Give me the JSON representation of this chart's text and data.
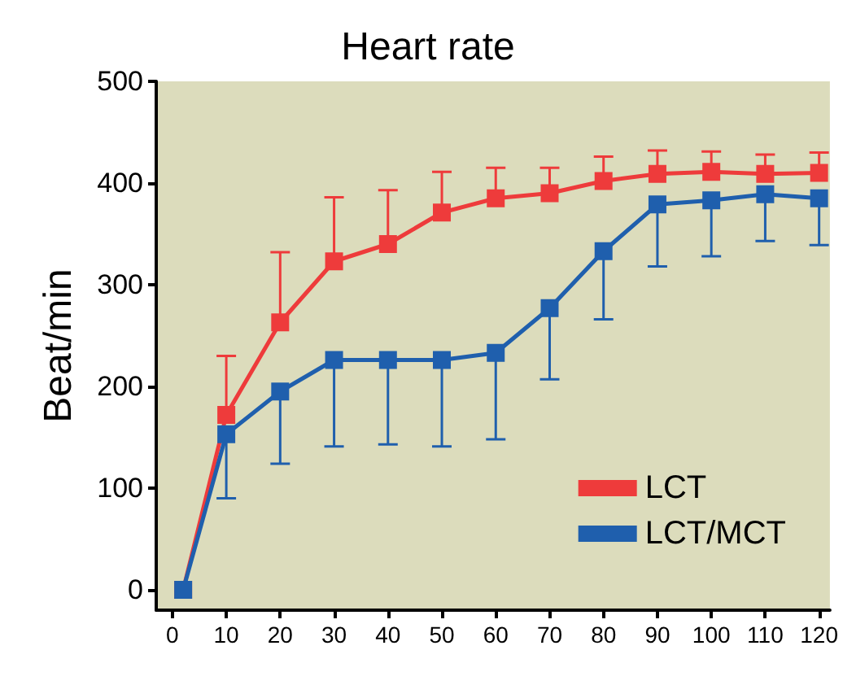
{
  "chart_data": {
    "type": "line",
    "title": "Heart rate",
    "ylabel": "Beat/min",
    "x": [
      2,
      10,
      20,
      30,
      40,
      50,
      60,
      70,
      80,
      90,
      100,
      110,
      120
    ],
    "xlim": [
      -3,
      122
    ],
    "xticks": [
      0,
      10,
      20,
      30,
      40,
      50,
      60,
      70,
      80,
      90,
      100,
      110,
      120
    ],
    "ylim": [
      -20,
      500
    ],
    "yticks": [
      0,
      100,
      200,
      300,
      400,
      500
    ],
    "marker": "square",
    "legend": "bottom right",
    "grid": false,
    "series": [
      {
        "name": "LCT",
        "color": "#ee3b3b",
        "values": [
          0,
          172,
          263,
          323,
          340,
          371,
          385,
          390,
          402,
          409,
          411,
          409,
          410
        ],
        "errors": [
          null,
          [
            172,
            230
          ],
          [
            263,
            332
          ],
          [
            323,
            386
          ],
          [
            340,
            393
          ],
          [
            371,
            411
          ],
          [
            385,
            415
          ],
          [
            390,
            415
          ],
          [
            402,
            426
          ],
          [
            409,
            432
          ],
          [
            411,
            431
          ],
          [
            409,
            428
          ],
          [
            410,
            430
          ]
        ]
      },
      {
        "name": "LCT/MCT",
        "color": "#1f5fad",
        "values": [
          0,
          153,
          195,
          226,
          226,
          226,
          233,
          277,
          333,
          379,
          383,
          389,
          385
        ],
        "errors": [
          null,
          [
            90,
            153
          ],
          [
            124,
            195
          ],
          [
            141,
            226
          ],
          [
            143,
            226
          ],
          [
            141,
            226
          ],
          [
            148,
            233
          ],
          [
            207,
            277
          ],
          [
            266,
            333
          ],
          [
            318,
            379
          ],
          [
            328,
            383
          ],
          [
            343,
            389
          ],
          [
            339,
            385
          ]
        ]
      }
    ]
  }
}
